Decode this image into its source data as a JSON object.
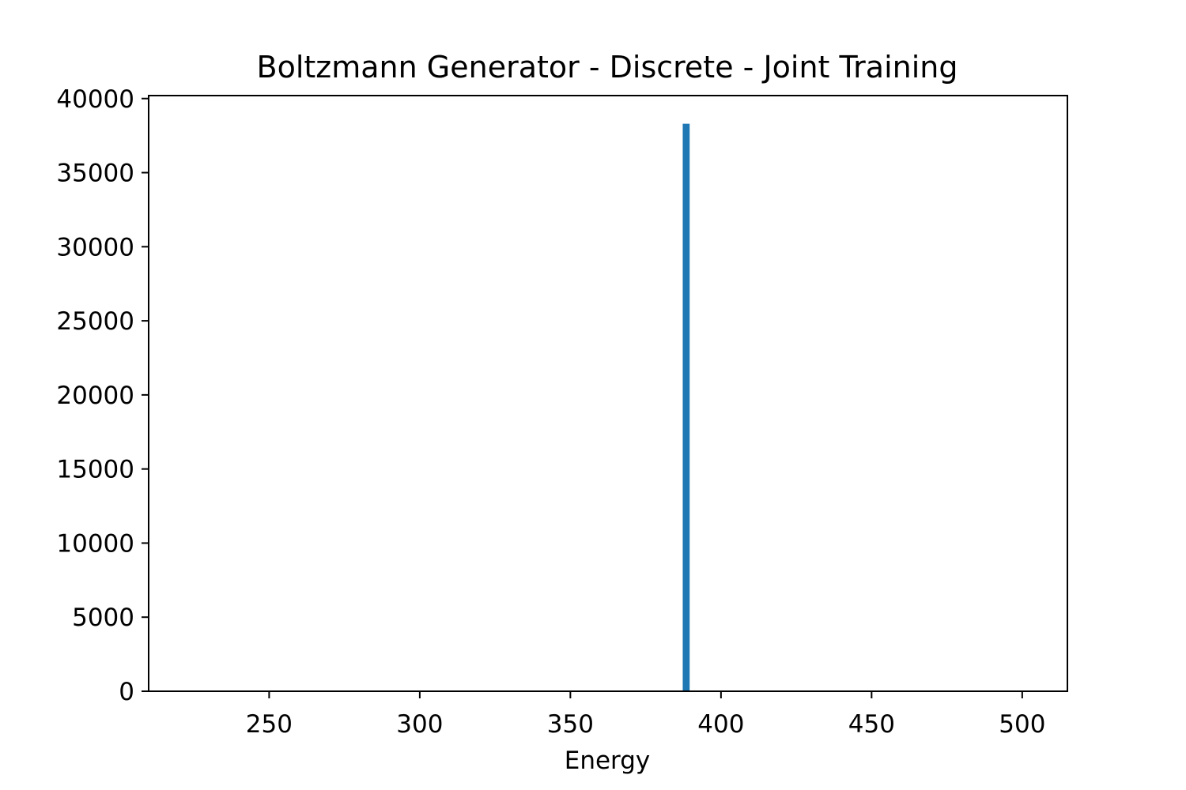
{
  "chart_data": {
    "type": "bar",
    "title": "Boltzmann Generator - Discrete - Joint Training",
    "xlabel": "Energy",
    "ylabel": "",
    "xlim": [
      210,
      515
    ],
    "ylim": [
      0,
      40200
    ],
    "xticks": [
      250,
      300,
      350,
      400,
      450,
      500
    ],
    "yticks": [
      0,
      5000,
      10000,
      15000,
      20000,
      25000,
      30000,
      35000,
      40000
    ],
    "bins": [
      {
        "x_start": 387.3,
        "x_end": 389.6,
        "count": 38300
      }
    ],
    "bar_color": "#1f77b4",
    "grid": false,
    "legend": false
  }
}
